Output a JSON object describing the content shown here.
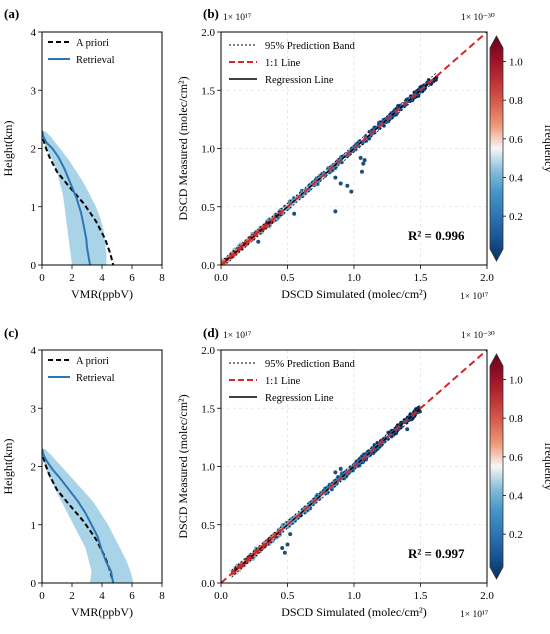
{
  "panels": [
    {
      "id": "a",
      "letter": "(a)",
      "type": "line",
      "xlabel": "VMR(ppbV)",
      "ylabel": "Height(km)",
      "xlim": [
        0,
        8
      ],
      "ylim": [
        0,
        4
      ],
      "xticks": [
        "0",
        "2",
        "4",
        "6",
        "8"
      ],
      "yticks": [
        "0",
        "1",
        "2",
        "3",
        "4"
      ],
      "legend": [
        "A priori",
        "Retrieval"
      ],
      "series": [
        {
          "name": "A priori",
          "x": [
            0.0,
            0.05,
            0.2,
            0.5,
            1.0,
            1.8,
            2.8,
            3.6,
            4.2,
            4.55,
            4.75
          ],
          "y": [
            2.3,
            2.2,
            2.05,
            1.85,
            1.6,
            1.35,
            1.05,
            0.75,
            0.45,
            0.2,
            0.0
          ]
        },
        {
          "name": "Retrieval",
          "x": [
            0.0,
            0.1,
            0.3,
            0.7,
            1.1,
            1.5,
            1.9,
            2.3,
            2.6,
            2.8,
            2.95,
            3.0,
            3.1,
            3.2
          ],
          "y": [
            2.3,
            2.2,
            2.1,
            2.0,
            1.85,
            1.65,
            1.4,
            1.15,
            0.9,
            0.65,
            0.45,
            0.3,
            0.15,
            0.0
          ]
        }
      ],
      "band": {
        "y": [
          2.3,
          2.2,
          2.0,
          1.8,
          1.6,
          1.4,
          1.2,
          1.0,
          0.8,
          0.6,
          0.4,
          0.2,
          0.0
        ],
        "lo": [
          0.0,
          0.0,
          0.3,
          0.7,
          1.0,
          1.2,
          1.4,
          1.5,
          1.6,
          1.7,
          1.8,
          1.9,
          2.0
        ],
        "hi": [
          0.2,
          0.6,
          1.2,
          1.8,
          2.3,
          2.8,
          3.2,
          3.6,
          3.9,
          4.1,
          4.2,
          4.3,
          4.3
        ]
      }
    },
    {
      "id": "b",
      "letter": "(b)",
      "type": "scatter",
      "xlabel": "DSCD Simulated (molec/cm²)",
      "ylabel": "DSCD Measured (molec/cm²)",
      "xlim": [
        0,
        2
      ],
      "ylim": [
        0,
        2
      ],
      "xticks": [
        "0.0",
        "0.5",
        "1.0",
        "1.5",
        "2.0"
      ],
      "yticks": [
        "0.0",
        "0.5",
        "1.0",
        "1.5",
        "2.0"
      ],
      "x_multiplier": "1× 10¹⁷",
      "y_multiplier": "1× 10¹⁷",
      "colorbar_multiplier": "1× 10⁻³⁰",
      "colorbar_label": "frequency",
      "colorbar_ticks": [
        "0.2",
        "0.4",
        "0.6",
        "0.8",
        "1.0"
      ],
      "colorbar_range": [
        0.03,
        1.07
      ],
      "legend": [
        "95% Prediction Band",
        "1:1 Line",
        "Regression Line"
      ],
      "r2_label": "R² = 0.996",
      "fit_range": [
        0.02,
        1.62
      ],
      "outliers": [
        [
          0.28,
          0.2
        ],
        [
          0.86,
          0.46
        ],
        [
          0.86,
          0.75
        ],
        [
          0.9,
          0.7
        ],
        [
          0.95,
          0.68
        ],
        [
          0.98,
          0.63
        ],
        [
          1.06,
          0.8
        ],
        [
          1.07,
          0.87
        ],
        [
          1.08,
          0.9
        ],
        [
          1.05,
          0.92
        ],
        [
          0.55,
          0.44
        ]
      ]
    },
    {
      "id": "c",
      "letter": "(c)",
      "type": "line",
      "xlabel": "VMR(ppbV)",
      "ylabel": "Height(km)",
      "xlim": [
        0,
        8
      ],
      "ylim": [
        0,
        4
      ],
      "xticks": [
        "0",
        "2",
        "4",
        "6",
        "8"
      ],
      "yticks": [
        "0",
        "1",
        "2",
        "3",
        "4"
      ],
      "legend": [
        "A priori",
        "Retrieval"
      ],
      "series": [
        {
          "name": "A priori",
          "x": [
            0.0,
            0.05,
            0.2,
            0.5,
            1.0,
            1.8,
            2.8,
            3.6,
            4.2,
            4.55,
            4.75
          ],
          "y": [
            2.3,
            2.2,
            2.05,
            1.85,
            1.6,
            1.35,
            1.05,
            0.75,
            0.45,
            0.2,
            0.0
          ]
        },
        {
          "name": "Retrieval",
          "x": [
            0.0,
            0.1,
            0.3,
            0.7,
            1.2,
            1.8,
            2.4,
            2.9,
            3.3,
            3.7,
            4.0,
            4.3,
            4.6,
            4.75
          ],
          "y": [
            2.3,
            2.2,
            2.1,
            1.95,
            1.8,
            1.6,
            1.4,
            1.2,
            1.0,
            0.8,
            0.55,
            0.35,
            0.2,
            0.0
          ]
        }
      ],
      "band": {
        "y": [
          2.3,
          2.2,
          2.0,
          1.8,
          1.6,
          1.4,
          1.2,
          1.0,
          0.8,
          0.6,
          0.4,
          0.2,
          0.0
        ],
        "lo": [
          0.0,
          0.0,
          0.2,
          0.5,
          0.9,
          1.3,
          1.7,
          2.1,
          2.5,
          2.9,
          3.1,
          3.3,
          3.2
        ],
        "hi": [
          0.2,
          0.6,
          1.3,
          2.0,
          2.7,
          3.4,
          3.9,
          4.4,
          4.8,
          5.2,
          5.6,
          5.9,
          6.1
        ]
      }
    },
    {
      "id": "d",
      "letter": "(d)",
      "type": "scatter",
      "xlabel": "DSCD Simulated (molec/cm²)",
      "ylabel": "DSCD Measured (molec/cm²)",
      "xlim": [
        0,
        2
      ],
      "ylim": [
        0,
        2
      ],
      "xticks": [
        "0.0",
        "0.5",
        "1.0",
        "1.5",
        "2.0"
      ],
      "yticks": [
        "0.0",
        "0.5",
        "1.0",
        "1.5",
        "2.0"
      ],
      "x_multiplier": "1× 10¹⁷",
      "y_multiplier": "1× 10¹⁷",
      "colorbar_multiplier": "1× 10⁻³⁰",
      "colorbar_label": "frequency",
      "colorbar_ticks": [
        "0.2",
        "0.4",
        "0.6",
        "0.8",
        "1.0"
      ],
      "colorbar_range": [
        0.03,
        1.07
      ],
      "legend": [
        "95% Prediction Band",
        "1:1 Line",
        "Regression Line"
      ],
      "r2_label": "R² = 0.997",
      "fit_range": [
        0.08,
        1.5
      ],
      "outliers": [
        [
          0.46,
          0.3
        ],
        [
          0.48,
          0.26
        ],
        [
          0.5,
          0.33
        ],
        [
          0.52,
          0.42
        ],
        [
          0.9,
          0.98
        ],
        [
          0.86,
          0.95
        ],
        [
          1.4,
          1.32
        ],
        [
          0.6,
          0.58
        ]
      ]
    }
  ]
}
